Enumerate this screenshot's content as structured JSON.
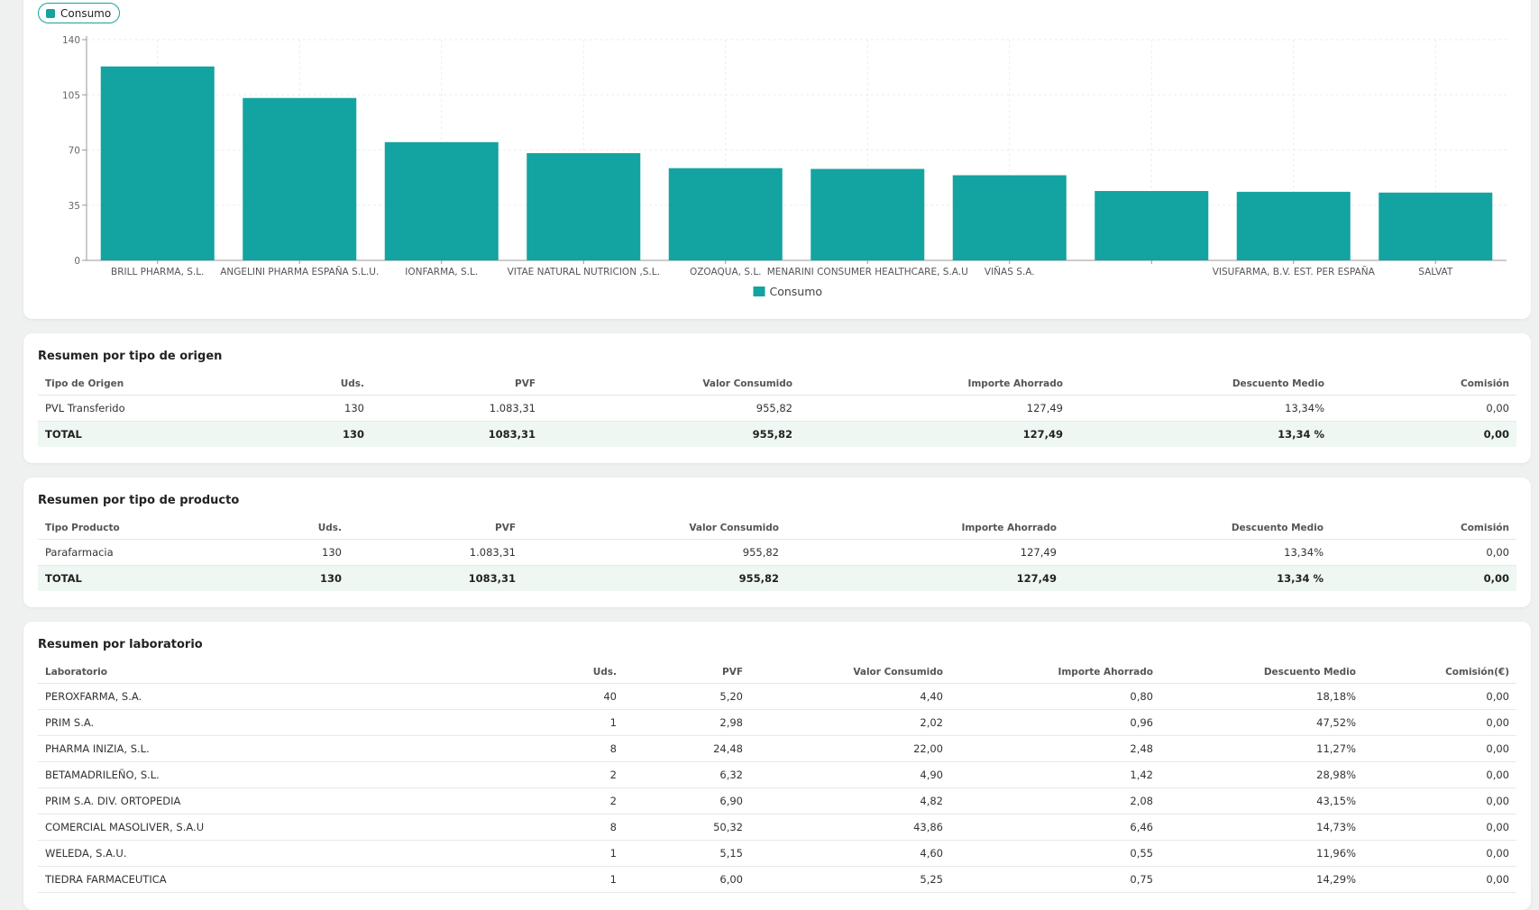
{
  "chart_data": {
    "type": "bar",
    "categories": [
      "BRILL PHARMA, S.L.",
      "ANGELINI PHARMA ESPAÑA S.L.U.",
      "IONFARMA, S.L.",
      "VITAE NATURAL NUTRICION ,S.L.",
      "OZOAQUA, S.L.",
      "MENARINI CONSUMER HEALTHCARE, S.A.U",
      "VIÑAS S.A.",
      "",
      "VISUFARMA, B.V. EST. PER ESPAÑA",
      "SALVAT"
    ],
    "series": [
      {
        "name": "Consumo",
        "values": [
          123,
          103,
          75,
          68,
          58.5,
          58,
          54,
          44,
          43.5,
          43
        ]
      }
    ],
    "yticks": [
      "0",
      "35",
      "70",
      "105",
      "140"
    ],
    "ylim": [
      0,
      140
    ],
    "grid": true,
    "legend": "bottom-center",
    "color": "#13a3a0"
  },
  "chip": {
    "label": "Consumo"
  },
  "origin": {
    "title": "Resumen por tipo de origen",
    "headers": [
      "Tipo de Origen",
      "Uds.",
      "PVF",
      "Valor Consumido",
      "Importe Ahorrado",
      "Descuento Medio",
      "Comisión"
    ],
    "rows": [
      [
        "PVL Transferido",
        "130",
        "1.083,31",
        "955,82",
        "127,49",
        "13,34%",
        "0,00"
      ]
    ],
    "total": [
      "TOTAL",
      "130",
      "1083,31",
      "955,82",
      "127,49",
      "13,34 %",
      "0,00"
    ]
  },
  "product": {
    "title": "Resumen por tipo de producto",
    "headers": [
      "Tipo Producto",
      "Uds.",
      "PVF",
      "Valor Consumido",
      "Importe Ahorrado",
      "Descuento Medio",
      "Comisión"
    ],
    "rows": [
      [
        "Parafarmacia",
        "130",
        "1.083,31",
        "955,82",
        "127,49",
        "13,34%",
        "0,00"
      ]
    ],
    "total": [
      "TOTAL",
      "130",
      "1083,31",
      "955,82",
      "127,49",
      "13,34 %",
      "0,00"
    ]
  },
  "lab": {
    "title": "Resumen por laboratorio",
    "headers": [
      "Laboratorio",
      "Uds.",
      "PVF",
      "Valor Consumido",
      "Importe Ahorrado",
      "Descuento Medio",
      "Comisión(€)"
    ],
    "rows": [
      [
        "PEROXFARMA, S.A.",
        "40",
        "5,20",
        "4,40",
        "0,80",
        "18,18%",
        "0,00"
      ],
      [
        "PRIM S.A.",
        "1",
        "2,98",
        "2,02",
        "0,96",
        "47,52%",
        "0,00"
      ],
      [
        "PHARMA INIZIA, S.L.",
        "8",
        "24,48",
        "22,00",
        "2,48",
        "11,27%",
        "0,00"
      ],
      [
        "BETAMADRILEÑO, S.L.",
        "2",
        "6,32",
        "4,90",
        "1,42",
        "28,98%",
        "0,00"
      ],
      [
        "PRIM S.A. DIV. ORTOPEDIA",
        "2",
        "6,90",
        "4,82",
        "2,08",
        "43,15%",
        "0,00"
      ],
      [
        "COMERCIAL MASOLIVER, S.A.U",
        "8",
        "50,32",
        "43,86",
        "6,46",
        "14,73%",
        "0,00"
      ],
      [
        "WELEDA, S.A.U.",
        "1",
        "5,15",
        "4,60",
        "0,55",
        "11,96%",
        "0,00"
      ],
      [
        "TIEDRA FARMACEUTICA",
        "1",
        "6,00",
        "5,25",
        "0,75",
        "14,29%",
        "0,00"
      ]
    ]
  }
}
